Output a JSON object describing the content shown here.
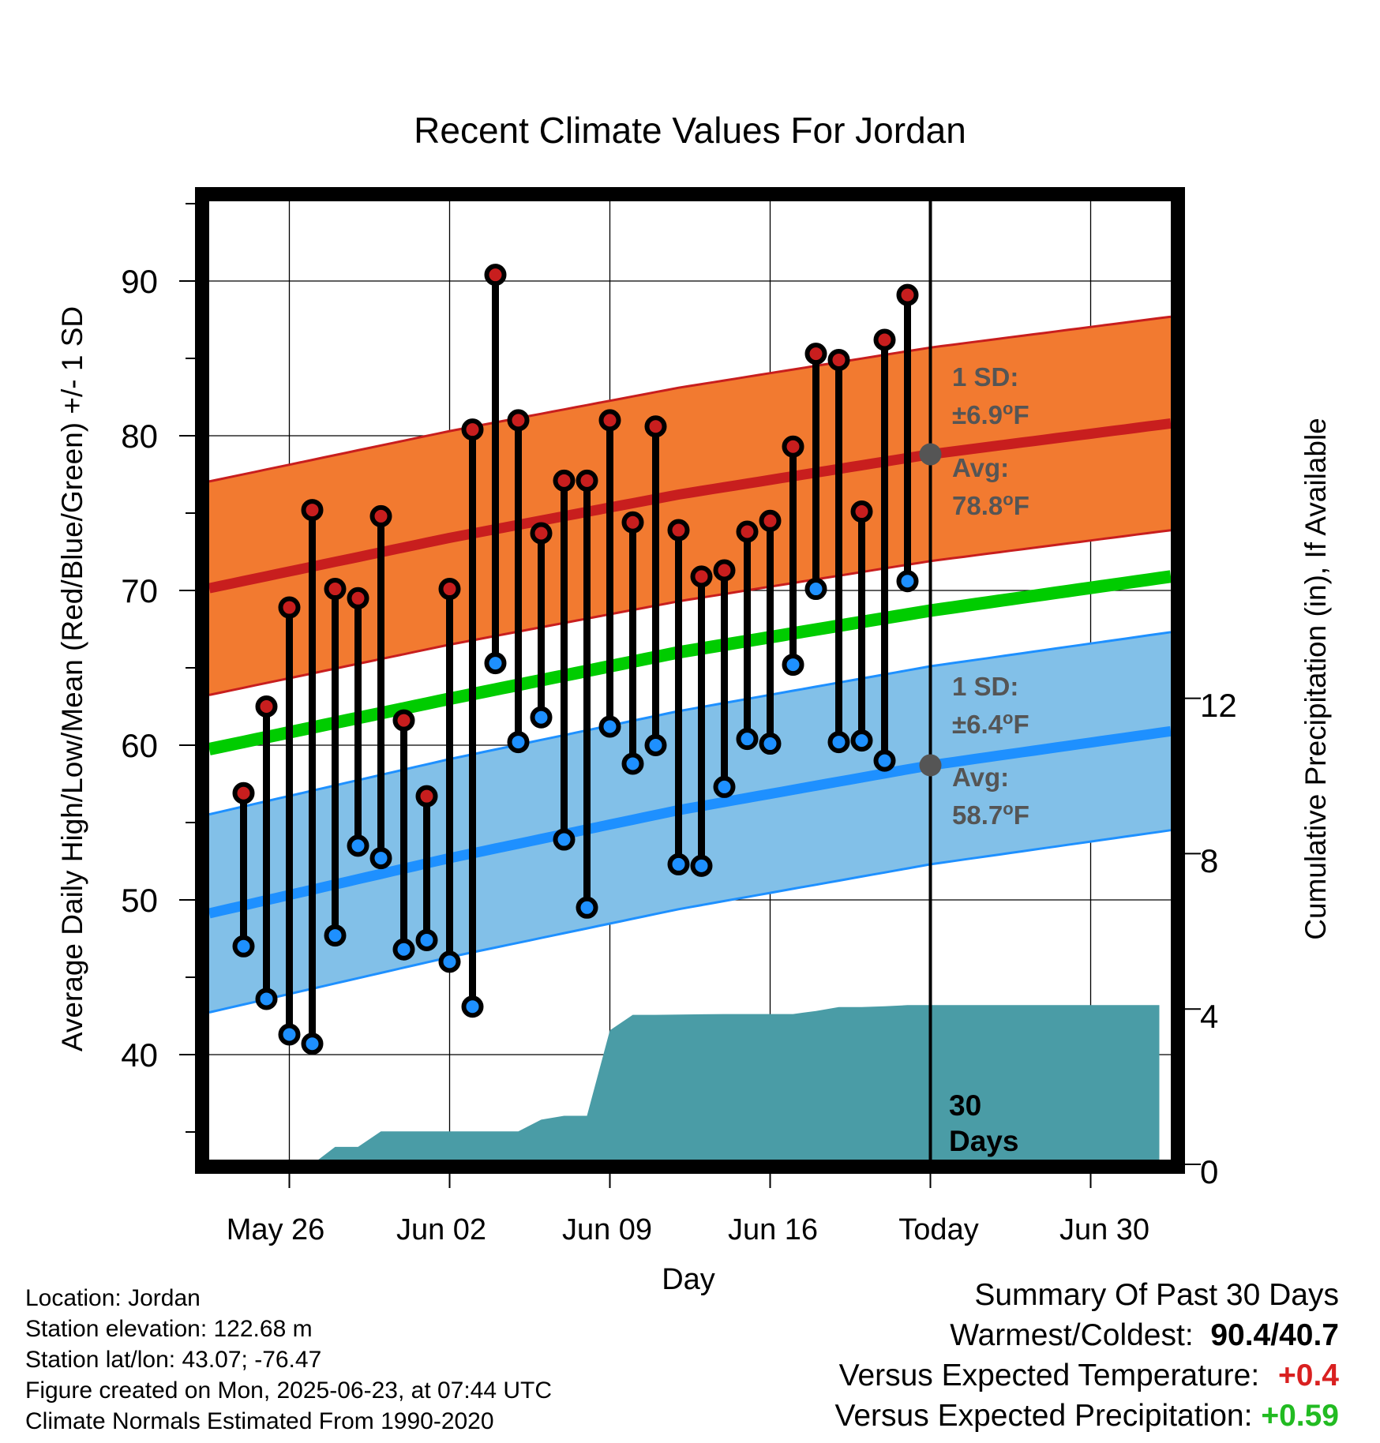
{
  "title": "Recent Climate Values For Jordan",
  "y_axis_label": "Average Daily High/Low/Mean (Red/Blue/Green) +/- 1 SD",
  "y2_axis_label": "Cumulative Precipitation (in), If Available",
  "x_axis_label": "Day",
  "x_ticks": [
    "May 26",
    "Jun 02",
    "Jun 09",
    "Jun 16",
    "Today",
    "Jun 30"
  ],
  "y_ticks": [
    "40",
    "50",
    "60",
    "70",
    "80",
    "90"
  ],
  "y2_ticks": [
    "0",
    "4",
    "8",
    "12"
  ],
  "high_annotation": {
    "sd_label": "1 SD:",
    "sd_value": "±6.9",
    "avg_label": "Avg:",
    "avg_value": "78.8",
    "unit": "F"
  },
  "low_annotation": {
    "sd_label": "1 SD:",
    "sd_value": "±6.4",
    "avg_label": "Avg:",
    "avg_value": "58.7",
    "unit": "F"
  },
  "period_label": {
    "line1": "30",
    "line2": "Days"
  },
  "metadata": [
    "Location: Jordan",
    "Station elevation: 122.68 m",
    "Station lat/lon: 43.07; -76.47",
    "Figure created on Mon, 2025-06-23, at 07:44 UTC",
    "Climate Normals Estimated From 1990-2020"
  ],
  "summary": {
    "heading": "Summary Of Past 30 Days",
    "warm_cold_label": "Warmest/Coldest:",
    "warm_value": "90.4",
    "sep": "/",
    "cold_value": "40.7",
    "temp_label": "Versus Expected Temperature:",
    "temp_value": "+0.4",
    "precip_label": "Versus Expected Precipitation:",
    "precip_value": "+0.59"
  },
  "colors": {
    "high": "#c81e1e",
    "high_band": "#f27a30",
    "low": "#1e90ff",
    "low_band": "#82c0e8",
    "mean": "#00cc00",
    "precip": "#4a9ca6",
    "anno": "#555555",
    "warm_text": "#d92020",
    "precip_text": "#22bb22"
  },
  "chart_data": {
    "type": "line",
    "x_units": "day (0 = Today, Jun 23 2025)",
    "x_range": [
      -31.5,
      10.5
    ],
    "ylim_temperature_F": [
      33,
      95
    ],
    "ylim_precip_in": [
      0,
      16
    ],
    "observations_x": [
      -30,
      -29,
      -28,
      -27,
      -26,
      -25,
      -24,
      -23,
      -22,
      -21,
      -20,
      -19,
      -18,
      -17,
      -16,
      -15,
      -14,
      -13,
      -12,
      -11,
      -10,
      -9,
      -8,
      -7,
      -6,
      -5,
      -4,
      -3,
      -2,
      -1
    ],
    "highs": [
      56.9,
      62.5,
      68.9,
      75.2,
      70.1,
      69.5,
      74.8,
      61.6,
      56.7,
      70.1,
      80.4,
      90.4,
      81.0,
      73.7,
      77.1,
      77.1,
      81.0,
      74.4,
      80.6,
      73.9,
      70.9,
      71.3,
      73.8,
      74.5,
      79.3,
      85.3,
      84.9,
      75.1,
      86.2,
      89.1
    ],
    "lows": [
      47.0,
      43.6,
      41.3,
      40.7,
      47.7,
      53.5,
      52.7,
      46.8,
      47.4,
      46.0,
      43.1,
      65.3,
      60.2,
      61.8,
      53.9,
      49.5,
      61.2,
      58.8,
      60.0,
      52.3,
      52.2,
      57.3,
      60.4,
      60.1,
      65.2,
      70.1,
      60.2,
      60.3,
      59.0,
      70.6
    ],
    "normals_x": [
      -31,
      -21,
      -11,
      0,
      10
    ],
    "normal_high": [
      70.3,
      73.4,
      76.2,
      78.8,
      80.7
    ],
    "normal_low": [
      49.3,
      52.7,
      55.8,
      58.7,
      60.8
    ],
    "normal_mean": [
      59.9,
      63.0,
      66.0,
      68.7,
      70.8
    ],
    "sd_high": 6.9,
    "sd_low": 6.4,
    "precip_x": [
      -31,
      -27,
      -26,
      -25,
      -24,
      -23,
      -22,
      -21,
      -20,
      -18,
      -17,
      -16,
      -15,
      -14,
      -13,
      -12,
      -9,
      -6,
      -5,
      -4,
      -3,
      -2,
      -1,
      0,
      10
    ],
    "precip_cumulative": [
      0,
      0,
      0.45,
      0.45,
      0.85,
      0.85,
      0.85,
      0.85,
      0.85,
      0.85,
      1.15,
      1.25,
      1.25,
      3.45,
      3.85,
      3.85,
      3.87,
      3.87,
      3.95,
      4.05,
      4.05,
      4.07,
      4.1,
      4.1,
      4.1
    ]
  }
}
